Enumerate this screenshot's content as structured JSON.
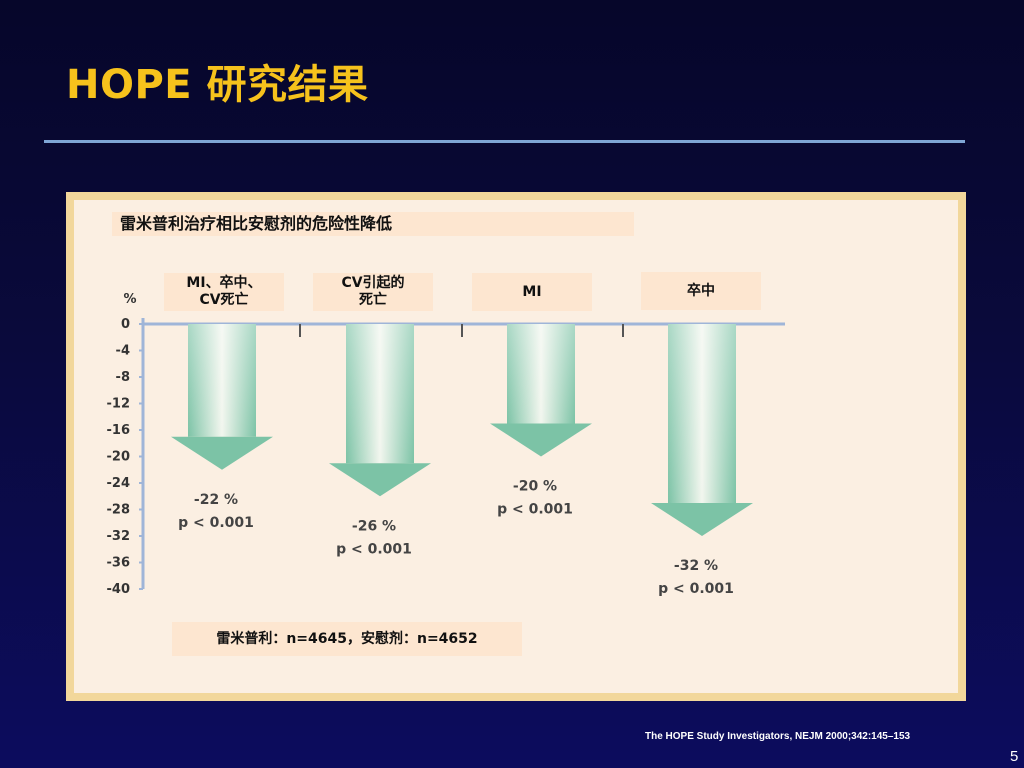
{
  "slide": {
    "title": "HOPE 研究结果",
    "citation": "The HOPE Study Investigators, NEJM 2000;342:145–153",
    "page_number": "5",
    "title_color": "#f6c21c"
  },
  "chart_data": {
    "type": "bar",
    "title": "雷米普利治疗相比安慰剂的危险性降低",
    "ylabel": "%",
    "ylim": [
      -40,
      0
    ],
    "yticks": [
      0,
      -4,
      -8,
      -12,
      -16,
      -20,
      -24,
      -28,
      -32,
      -36,
      -40
    ],
    "categories": [
      "MI、卒中、\nCV死亡",
      "CV引起的\n死亡",
      "MI",
      "卒中"
    ],
    "values": [
      -22,
      -26,
      -20,
      -32
    ],
    "value_labels": [
      "-22 %",
      "-26 %",
      "-20 %",
      "-32 %"
    ],
    "p_labels": [
      "p < 0.001",
      "p < 0.001",
      "p < 0.001",
      "p < 0.001"
    ],
    "note": "雷米普利：n=4645，安慰剂：n=4652",
    "colors": {
      "arrow_dark": "#7cc3a6",
      "arrow_light": "#f2f6ee",
      "axis": "#9fb5d8",
      "text": "#333333"
    }
  }
}
